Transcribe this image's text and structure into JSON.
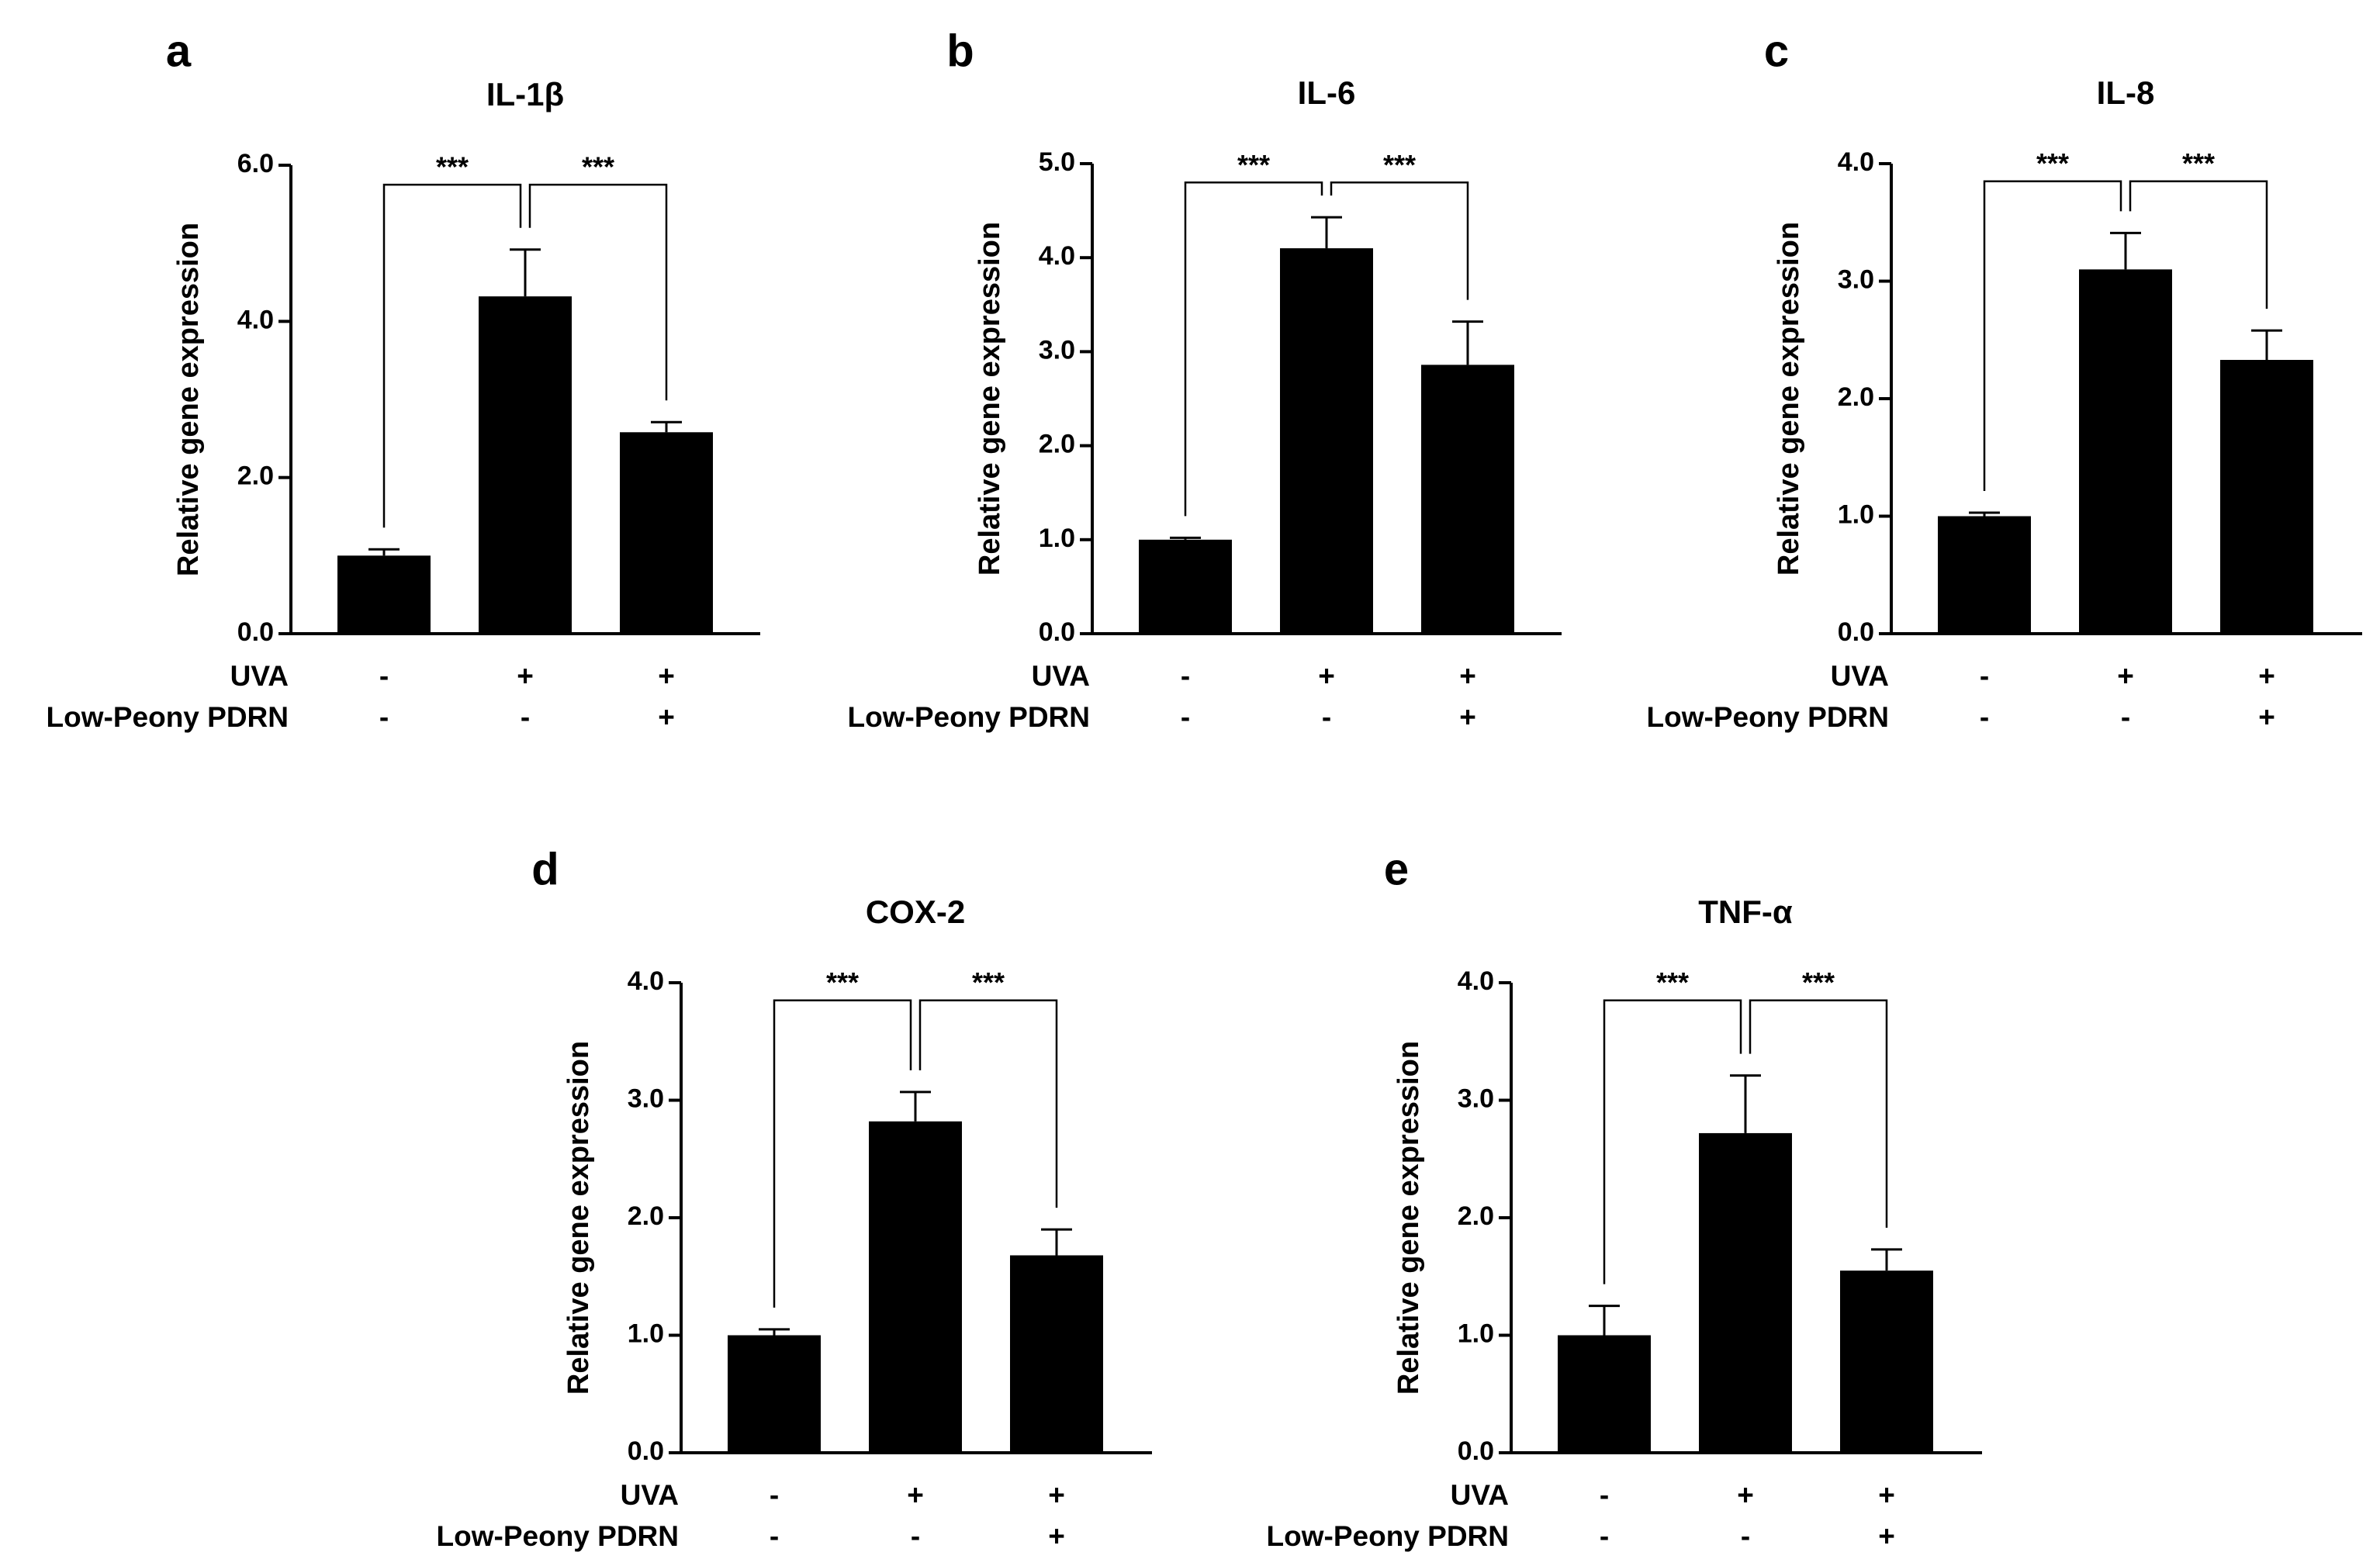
{
  "figure": {
    "row_labels": [
      "UVA",
      "Low-Peony PDRN"
    ],
    "condition_signs": [
      [
        "-",
        "+",
        "+"
      ],
      [
        "-",
        "-",
        "+"
      ]
    ]
  },
  "chart_data": [
    {
      "type": "bar",
      "panel": "a",
      "title": "IL-1β",
      "ylabel": "Relative gene expression",
      "xlabel": "",
      "ylim": [
        0,
        6
      ],
      "yticks": [
        0,
        2,
        4,
        6
      ],
      "ytick_labels": [
        "0.0",
        "2.0",
        "4.0",
        "6.0"
      ],
      "categories": [
        "UVA- / Low-Peony PDRN-",
        "UVA+ / Low-Peony PDRN-",
        "UVA+ / Low-Peony PDRN+"
      ],
      "values": [
        1.0,
        4.32,
        2.58
      ],
      "errors": [
        0.08,
        0.6,
        0.13
      ],
      "comparisons": [
        {
          "from": 0,
          "to": 1,
          "label": "***"
        },
        {
          "from": 1,
          "to": 2,
          "label": "***"
        }
      ],
      "bracket_top": 5.75
    },
    {
      "type": "bar",
      "panel": "b",
      "title": "IL-6",
      "ylabel": "Relative gene expression",
      "xlabel": "",
      "ylim": [
        0,
        5
      ],
      "yticks": [
        0,
        1,
        2,
        3,
        4,
        5
      ],
      "ytick_labels": [
        "0.0",
        "1.0",
        "2.0",
        "3.0",
        "4.0",
        "5.0"
      ],
      "categories": [
        "UVA- / Low-Peony PDRN-",
        "UVA+ / Low-Peony PDRN-",
        "UVA+ / Low-Peony PDRN+"
      ],
      "values": [
        1.0,
        4.1,
        2.86
      ],
      "errors": [
        0.02,
        0.33,
        0.46
      ],
      "comparisons": [
        {
          "from": 0,
          "to": 1,
          "label": "***"
        },
        {
          "from": 1,
          "to": 2,
          "label": "***"
        }
      ],
      "bracket_top": 4.8
    },
    {
      "type": "bar",
      "panel": "c",
      "title": "IL-8",
      "ylabel": "Relative gene expression",
      "xlabel": "",
      "ylim": [
        0,
        4
      ],
      "yticks": [
        0,
        1,
        2,
        3,
        4
      ],
      "ytick_labels": [
        "0.0",
        "1.0",
        "2.0",
        "3.0",
        "4.0"
      ],
      "categories": [
        "UVA- / Low-Peony PDRN-",
        "UVA+ / Low-Peony PDRN-",
        "UVA+ / Low-Peony PDRN+"
      ],
      "values": [
        1.0,
        3.1,
        2.33
      ],
      "errors": [
        0.03,
        0.31,
        0.25
      ],
      "comparisons": [
        {
          "from": 0,
          "to": 1,
          "label": "***"
        },
        {
          "from": 1,
          "to": 2,
          "label": "***"
        }
      ],
      "bracket_top": 3.85
    },
    {
      "type": "bar",
      "panel": "d",
      "title": "COX-2",
      "ylabel": "Relative gene expression",
      "xlabel": "",
      "ylim": [
        0,
        4
      ],
      "yticks": [
        0,
        1,
        2,
        3,
        4
      ],
      "ytick_labels": [
        "0.0",
        "1.0",
        "2.0",
        "3.0",
        "4.0"
      ],
      "categories": [
        "UVA- / Low-Peony PDRN-",
        "UVA+ / Low-Peony PDRN-",
        "UVA+ / Low-Peony PDRN+"
      ],
      "values": [
        1.0,
        2.82,
        1.68
      ],
      "errors": [
        0.05,
        0.25,
        0.22
      ],
      "comparisons": [
        {
          "from": 0,
          "to": 1,
          "label": "***"
        },
        {
          "from": 1,
          "to": 2,
          "label": "***"
        }
      ],
      "bracket_top": 3.85
    },
    {
      "type": "bar",
      "panel": "e",
      "title": "TNF-α",
      "ylabel": "Relative gene expression",
      "xlabel": "",
      "ylim": [
        0,
        4
      ],
      "yticks": [
        0,
        1,
        2,
        3,
        4
      ],
      "ytick_labels": [
        "0.0",
        "1.0",
        "2.0",
        "3.0",
        "4.0"
      ],
      "categories": [
        "UVA- / Low-Peony PDRN-",
        "UVA+ / Low-Peony PDRN-",
        "UVA+ / Low-Peony PDRN+"
      ],
      "values": [
        1.0,
        2.72,
        1.55
      ],
      "errors": [
        0.25,
        0.49,
        0.18
      ],
      "comparisons": [
        {
          "from": 0,
          "to": 1,
          "label": "***"
        },
        {
          "from": 1,
          "to": 2,
          "label": "***"
        }
      ],
      "bracket_top": 3.85
    }
  ]
}
